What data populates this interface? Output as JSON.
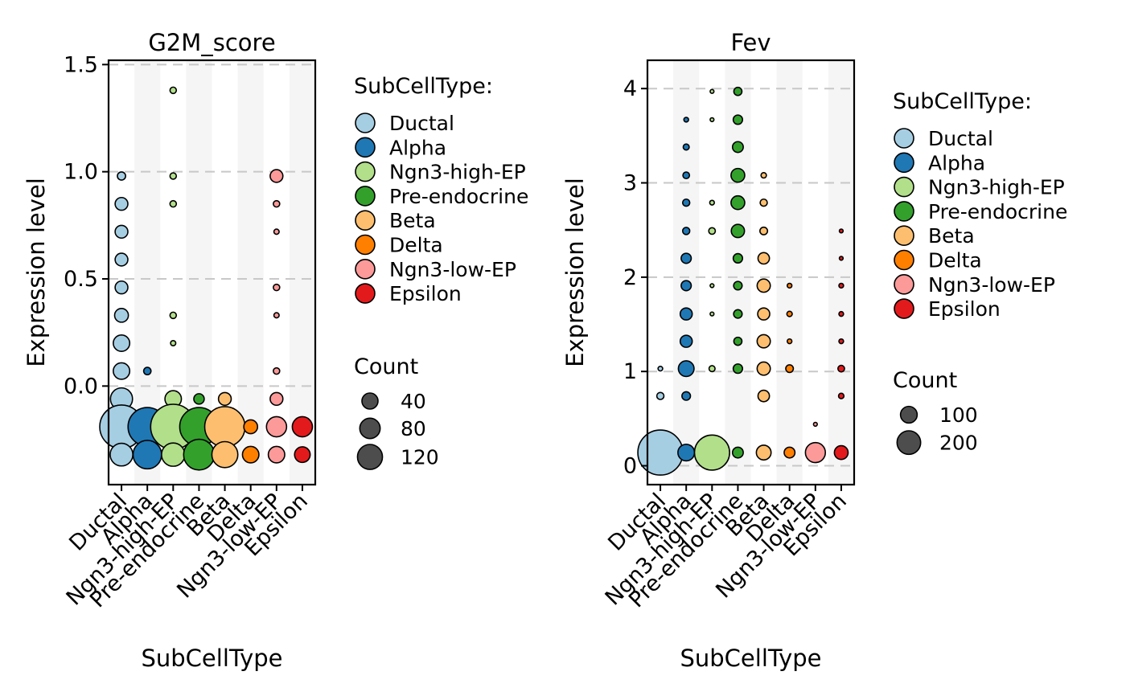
{
  "chart_data": [
    {
      "type": "scatter",
      "title": "G2M_score",
      "xlabel": "SubCellType",
      "ylabel": "Expression level",
      "ylim": [
        -0.46,
        1.52
      ],
      "yticks": [
        0.0,
        0.5,
        1.0,
        1.5
      ],
      "ytick_labels": [
        "0.0",
        "0.5",
        "1.0",
        "1.5"
      ],
      "grid": "dashed horizontal at major ticks",
      "legend_position": "right",
      "categories": [
        "Ductal",
        "Alpha",
        "Ngn3-high-EP",
        "Pre-endocrine",
        "Beta",
        "Delta",
        "Ngn3-low-EP",
        "Epsilon"
      ],
      "size_legend": {
        "title": "Count",
        "values": [
          40,
          80,
          120
        ],
        "labels": [
          "40",
          "80",
          "120"
        ]
      },
      "series": [
        {
          "name": "Ductal",
          "points": [
            {
              "y": 0.98,
              "count": 5
            },
            {
              "y": 0.85,
              "count": 12
            },
            {
              "y": 0.72,
              "count": 12
            },
            {
              "y": 0.59,
              "count": 12
            },
            {
              "y": 0.46,
              "count": 12
            },
            {
              "y": 0.33,
              "count": 14
            },
            {
              "y": 0.2,
              "count": 20
            },
            {
              "y": 0.07,
              "count": 20
            },
            {
              "y": -0.06,
              "count": 36
            },
            {
              "y": -0.19,
              "count": 140
            },
            {
              "y": -0.32,
              "count": 38
            }
          ]
        },
        {
          "name": "Alpha",
          "points": [
            {
              "y": 0.07,
              "count": 4
            },
            {
              "y": -0.19,
              "count": 110
            },
            {
              "y": -0.32,
              "count": 60
            }
          ]
        },
        {
          "name": "Ngn3-high-EP",
          "points": [
            {
              "y": 1.38,
              "count": 3
            },
            {
              "y": 0.98,
              "count": 3
            },
            {
              "y": 0.85,
              "count": 3
            },
            {
              "y": 0.33,
              "count": 3
            },
            {
              "y": 0.2,
              "count": 2
            },
            {
              "y": -0.06,
              "count": 20
            },
            {
              "y": -0.19,
              "count": 150
            },
            {
              "y": -0.32,
              "count": 40
            }
          ]
        },
        {
          "name": "Pre-endocrine",
          "points": [
            {
              "y": -0.06,
              "count": 8
            },
            {
              "y": -0.19,
              "count": 110
            },
            {
              "y": -0.32,
              "count": 70
            }
          ]
        },
        {
          "name": "Beta",
          "points": [
            {
              "y": -0.06,
              "count": 12
            },
            {
              "y": -0.19,
              "count": 120
            },
            {
              "y": -0.32,
              "count": 50
            }
          ]
        },
        {
          "name": "Delta",
          "points": [
            {
              "y": -0.19,
              "count": 14
            },
            {
              "y": -0.32,
              "count": 20
            }
          ]
        },
        {
          "name": "Ngn3-low-EP",
          "points": [
            {
              "y": 0.98,
              "count": 12
            },
            {
              "y": 0.85,
              "count": 3
            },
            {
              "y": 0.72,
              "count": 2
            },
            {
              "y": 0.46,
              "count": 3
            },
            {
              "y": 0.33,
              "count": 2
            },
            {
              "y": 0.07,
              "count": 3
            },
            {
              "y": -0.06,
              "count": 12
            },
            {
              "y": -0.19,
              "count": 30
            },
            {
              "y": -0.32,
              "count": 20
            }
          ]
        },
        {
          "name": "Epsilon",
          "points": [
            {
              "y": -0.19,
              "count": 30
            },
            {
              "y": -0.32,
              "count": 18
            }
          ]
        }
      ]
    },
    {
      "type": "scatter",
      "title": "Fev",
      "xlabel": "SubCellType",
      "ylabel": "Expression level",
      "ylim": [
        -0.2,
        4.3
      ],
      "yticks": [
        0,
        1,
        2,
        3,
        4
      ],
      "ytick_labels": [
        "0",
        "1",
        "2",
        "3",
        "4"
      ],
      "grid": "dashed horizontal at major ticks",
      "legend_position": "right",
      "categories": [
        "Ductal",
        "Alpha",
        "Ngn3-high-EP",
        "Pre-endocrine",
        "Beta",
        "Delta",
        "Ngn3-low-EP",
        "Epsilon"
      ],
      "size_legend": {
        "title": "Count",
        "values": [
          100,
          200
        ],
        "labels": [
          "100",
          "200"
        ]
      },
      "series": [
        {
          "name": "Ductal",
          "points": [
            {
              "y": 1.03,
              "count": 3
            },
            {
              "y": 0.74,
              "count": 7
            },
            {
              "y": 0.14,
              "count": 280
            }
          ]
        },
        {
          "name": "Alpha",
          "points": [
            {
              "y": 3.67,
              "count": 3
            },
            {
              "y": 3.38,
              "count": 5
            },
            {
              "y": 3.08,
              "count": 6
            },
            {
              "y": 2.79,
              "count": 7
            },
            {
              "y": 2.49,
              "count": 7
            },
            {
              "y": 2.2,
              "count": 14
            },
            {
              "y": 1.91,
              "count": 14
            },
            {
              "y": 1.61,
              "count": 20
            },
            {
              "y": 1.32,
              "count": 20
            },
            {
              "y": 1.03,
              "count": 34
            },
            {
              "y": 0.74,
              "count": 10
            },
            {
              "y": 0.14,
              "count": 38
            }
          ]
        },
        {
          "name": "Ngn3-high-EP",
          "points": [
            {
              "y": 3.97,
              "count": 2
            },
            {
              "y": 3.67,
              "count": 2
            },
            {
              "y": 2.79,
              "count": 3
            },
            {
              "y": 2.49,
              "count": 6
            },
            {
              "y": 1.91,
              "count": 2
            },
            {
              "y": 1.61,
              "count": 2
            },
            {
              "y": 1.03,
              "count": 5
            },
            {
              "y": 0.14,
              "count": 170
            }
          ]
        },
        {
          "name": "Pre-endocrine",
          "points": [
            {
              "y": 3.97,
              "count": 9
            },
            {
              "y": 3.67,
              "count": 12
            },
            {
              "y": 3.38,
              "count": 16
            },
            {
              "y": 3.08,
              "count": 26
            },
            {
              "y": 2.79,
              "count": 26
            },
            {
              "y": 2.49,
              "count": 24
            },
            {
              "y": 2.2,
              "count": 12
            },
            {
              "y": 1.91,
              "count": 10
            },
            {
              "y": 1.61,
              "count": 10
            },
            {
              "y": 1.32,
              "count": 9
            },
            {
              "y": 1.03,
              "count": 12
            },
            {
              "y": 0.14,
              "count": 16
            }
          ]
        },
        {
          "name": "Beta",
          "points": [
            {
              "y": 3.08,
              "count": 4
            },
            {
              "y": 2.79,
              "count": 7
            },
            {
              "y": 2.49,
              "count": 8
            },
            {
              "y": 2.2,
              "count": 18
            },
            {
              "y": 1.91,
              "count": 24
            },
            {
              "y": 1.61,
              "count": 20
            },
            {
              "y": 1.32,
              "count": 24
            },
            {
              "y": 1.03,
              "count": 24
            },
            {
              "y": 0.74,
              "count": 18
            },
            {
              "y": 0.14,
              "count": 30
            }
          ]
        },
        {
          "name": "Delta",
          "points": [
            {
              "y": 1.91,
              "count": 3
            },
            {
              "y": 1.61,
              "count": 4
            },
            {
              "y": 1.32,
              "count": 3
            },
            {
              "y": 1.03,
              "count": 8
            },
            {
              "y": 0.14,
              "count": 16
            }
          ]
        },
        {
          "name": "Ngn3-low-EP",
          "points": [
            {
              "y": 0.44,
              "count": 2
            },
            {
              "y": 0.14,
              "count": 55
            }
          ]
        },
        {
          "name": "Epsilon",
          "points": [
            {
              "y": 2.49,
              "count": 2
            },
            {
              "y": 2.2,
              "count": 2
            },
            {
              "y": 1.91,
              "count": 3
            },
            {
              "y": 1.61,
              "count": 3
            },
            {
              "y": 1.32,
              "count": 3
            },
            {
              "y": 1.03,
              "count": 6
            },
            {
              "y": 0.74,
              "count": 4
            },
            {
              "y": 0.14,
              "count": 26
            }
          ]
        }
      ]
    }
  ],
  "legend": {
    "color_title": "SubCellType:",
    "size_title": "Count"
  },
  "colors": {
    "Ductal": "#A6CEE3",
    "Alpha": "#1F78B4",
    "Ngn3-high-EP": "#B2DF8A",
    "Pre-endocrine": "#33A02C",
    "Beta": "#FDBF6F",
    "Delta": "#FF7F00",
    "Ngn3-low-EP": "#FB9A99",
    "Epsilon": "#E31A1C",
    "size_key_fill": "#4D4D4D",
    "band": "#F5F5F5",
    "grid": "#C8C8C8"
  }
}
